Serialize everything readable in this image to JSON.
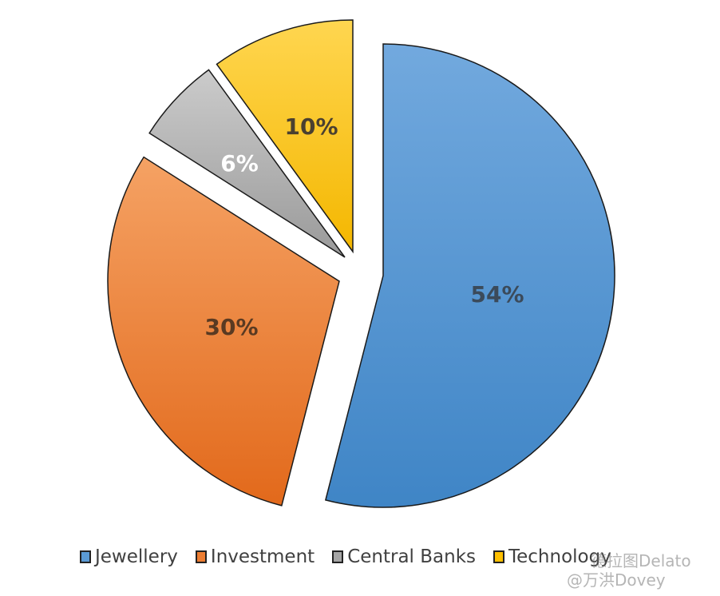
{
  "chart_data": {
    "type": "pie",
    "title": "",
    "categories": [
      "Jewellery",
      "Investment",
      "Central Banks",
      "Technology"
    ],
    "values": [
      54,
      30,
      6,
      10
    ],
    "labels": [
      "54%",
      "30%",
      "6%",
      "10%"
    ],
    "colors": [
      "#5b9bd5",
      "#ed7d31",
      "#a5a5a5",
      "#ffc000"
    ],
    "exploded": [
      false,
      true,
      true,
      true
    ],
    "start_angle": "12 o'clock, clockwise",
    "legend_position": "bottom"
  },
  "watermark": {
    "line1": "德拉图Delato",
    "line2": "@万洪Dovey"
  }
}
